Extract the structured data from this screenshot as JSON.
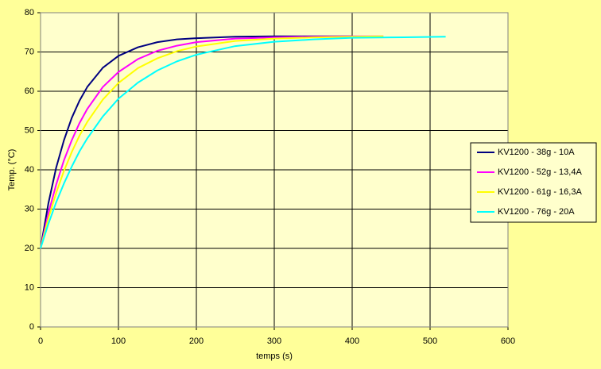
{
  "chart_data": {
    "type": "line",
    "xlabel": "temps (s)",
    "ylabel": "Temp. (°C)",
    "xlim": [
      0,
      600
    ],
    "xticks": [
      0,
      100,
      200,
      300,
      400,
      500,
      600
    ],
    "ylim": [
      0,
      80
    ],
    "yticks": [
      0,
      10,
      20,
      30,
      40,
      50,
      60,
      70,
      80
    ],
    "grid": true,
    "legend": "right",
    "series": [
      {
        "name": "KV1200 - 38g - 10A",
        "color": "#000080",
        "x": [
          0,
          10,
          20,
          30,
          40,
          50,
          60,
          80,
          100,
          125,
          150,
          175,
          200,
          250,
          300,
          350,
          400
        ],
        "values": [
          20,
          31.4,
          40.5,
          47.5,
          53.2,
          57.6,
          61.1,
          66.0,
          69.0,
          71.2,
          72.5,
          73.2,
          73.5,
          73.9,
          74,
          74,
          74
        ]
      },
      {
        "name": "KV1200 - 52g - 13,4A",
        "color": "#ff00ff",
        "x": [
          0,
          10,
          20,
          30,
          40,
          50,
          60,
          80,
          100,
          125,
          150,
          175,
          200,
          250,
          300,
          350,
          400,
          440
        ],
        "values": [
          20,
          28.9,
          36.2,
          42.4,
          47.5,
          51.9,
          55.5,
          61.1,
          64.9,
          68.2,
          70.3,
          71.6,
          72.5,
          73.4,
          73.7,
          73.9,
          74,
          74
        ]
      },
      {
        "name": "KV1200 - 61g - 16,3A",
        "color": "#ffff00",
        "x": [
          0,
          10,
          20,
          30,
          40,
          50,
          60,
          80,
          100,
          125,
          150,
          175,
          200,
          250,
          300,
          350,
          400,
          440
        ],
        "values": [
          20,
          27.6,
          34.1,
          39.7,
          44.5,
          48.7,
          52.2,
          57.9,
          62.1,
          65.9,
          68.4,
          70.2,
          71.4,
          72.8,
          73.4,
          73.7,
          73.9,
          74
        ]
      },
      {
        "name": "KV1200 - 76g - 20A",
        "color": "#00ffff",
        "x": [
          0,
          10,
          20,
          30,
          40,
          50,
          60,
          80,
          100,
          125,
          150,
          175,
          200,
          250,
          300,
          350,
          400,
          450,
          520
        ],
        "values": [
          20,
          26.2,
          31.7,
          36.5,
          40.8,
          44.7,
          48.0,
          53.6,
          58.1,
          62.2,
          65.3,
          67.6,
          69.3,
          71.5,
          72.6,
          73.2,
          73.6,
          73.7,
          73.9
        ]
      }
    ]
  }
}
